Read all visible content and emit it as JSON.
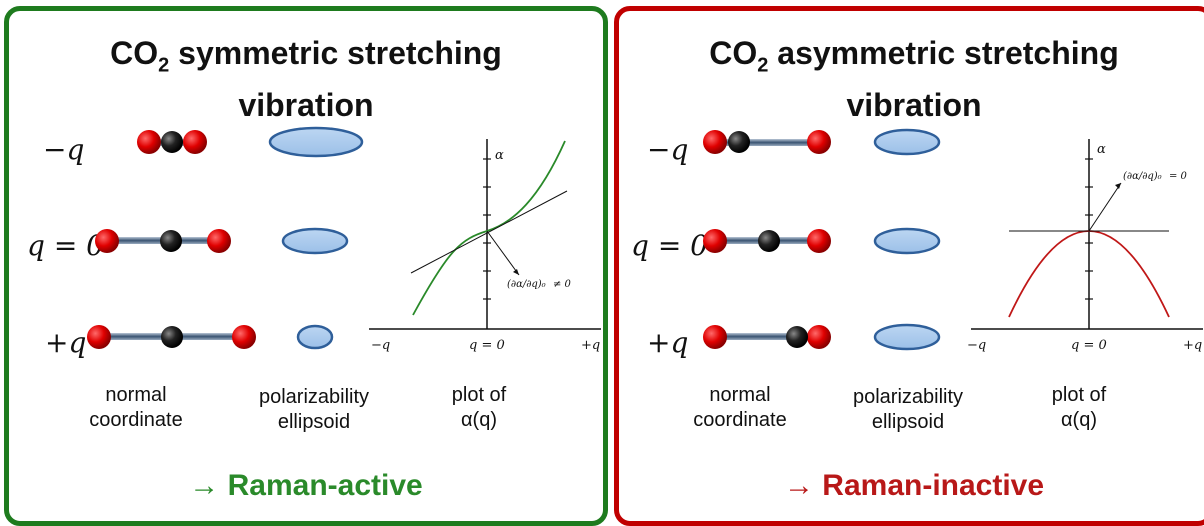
{
  "left": {
    "title_main": "CO",
    "title_sub": "2",
    "title_rest": " symmetric stretching",
    "title_line2": "vibration",
    "q_labels": [
      "−q",
      "q = 0",
      "+q"
    ],
    "captions": {
      "coord": [
        "normal",
        "coordinate"
      ],
      "ellipsoid": [
        "polarizability",
        "ellipsoid"
      ],
      "plot": [
        "plot of",
        "α(q)"
      ]
    },
    "plot": {
      "y_axis": "α",
      "x_ticks": [
        "−q",
        "q = 0",
        "+q"
      ],
      "annotation": "≠ 0"
    },
    "verdict": "→ Raman-active",
    "border_color": "#1e7b1e"
  },
  "right": {
    "title_main": "CO",
    "title_sub": "2",
    "title_rest": " asymmetric stretching",
    "title_line2": "vibration",
    "q_labels": [
      "−q",
      "q = 0",
      "+q"
    ],
    "captions": {
      "coord": [
        "normal",
        "coordinate"
      ],
      "ellipsoid": [
        "polarizability",
        "ellipsoid"
      ],
      "plot": [
        "plot of",
        "α(q)"
      ]
    },
    "plot": {
      "y_axis": "α",
      "x_ticks": [
        "−q",
        "q = 0",
        "+q"
      ],
      "annotation": "= 0"
    },
    "verdict": "→ Raman-inactive",
    "border_color": "#c00000"
  }
}
